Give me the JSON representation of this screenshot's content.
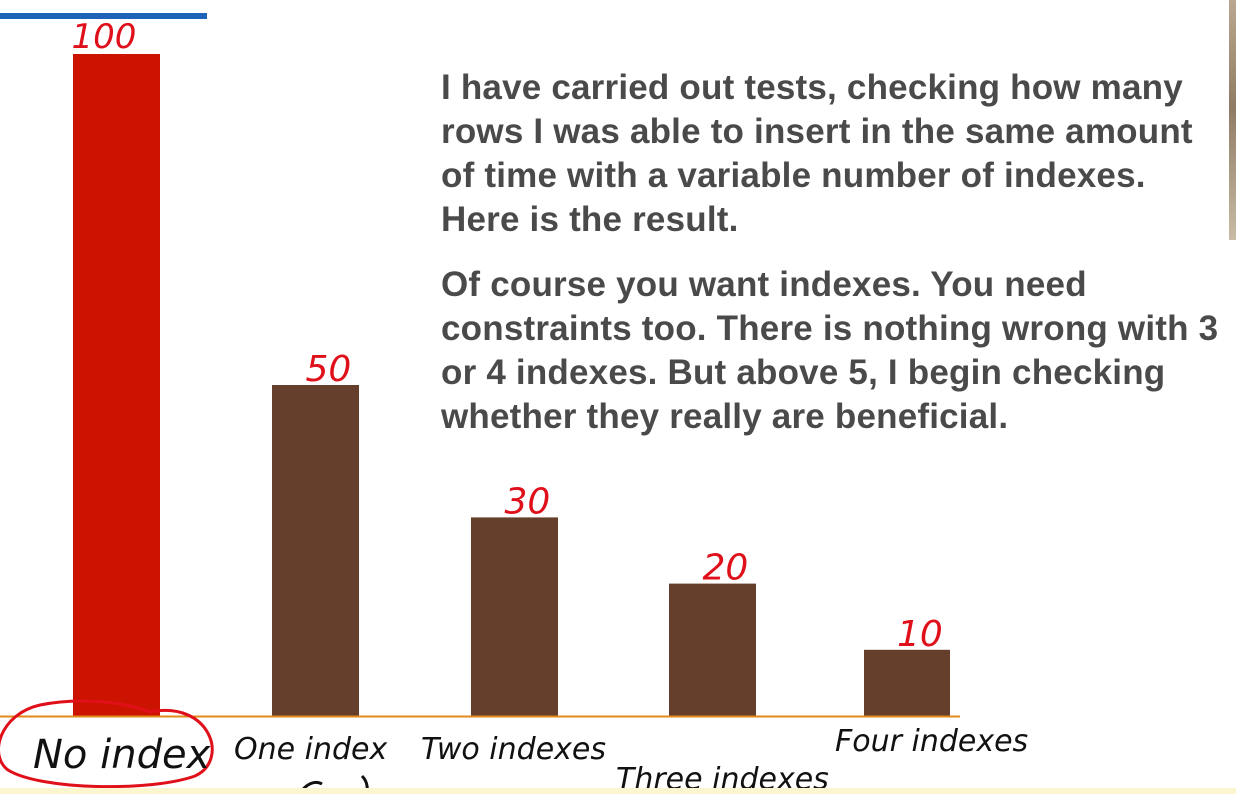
{
  "chart_data": {
    "type": "bar",
    "categories": [
      "No index",
      "One index",
      "Two indexes",
      "Three indexes",
      "Four indexes"
    ],
    "values": [
      100,
      50,
      30,
      20,
      10
    ],
    "value_labels": [
      "100",
      "50",
      "30",
      "20",
      "10"
    ],
    "bar_colors": [
      "#cc1300",
      "#663f2c",
      "#663f2c",
      "#663f2c",
      "#663f2c"
    ],
    "baseline_color": "#e08a1a",
    "annotation_color": "#e0101a",
    "title": "",
    "xlabel": "",
    "ylabel": "",
    "ylim": [
      0,
      100
    ],
    "grid": false,
    "legend": "none"
  },
  "text": {
    "paragraph_1": "I have carried out tests, checking how many rows I was able to insert in the same amount of time with a variable number of indexes. Here is the result.",
    "paragraph_2": "Of course you want indexes. You need constraints too. There is nothing wrong with 3 or 4 indexes. But above 5, I begin checking whether they really are beneficial."
  },
  "colors": {
    "accent_rule": "#1f63b8",
    "text": "#4a4a4a"
  }
}
